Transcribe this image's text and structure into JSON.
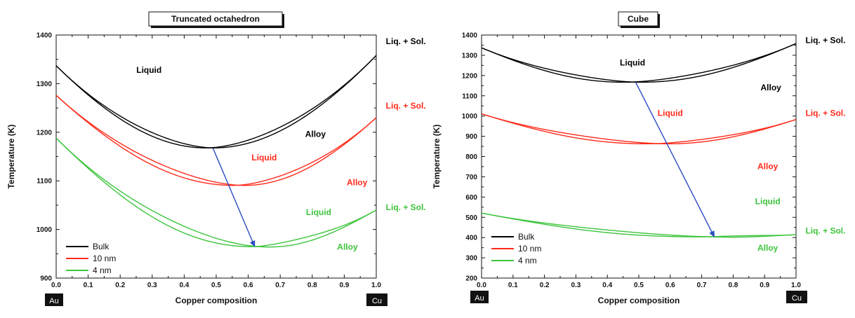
{
  "chart_data": [
    {
      "type": "line",
      "title": "Truncated octahedron",
      "xlabel": "Copper composition",
      "ylabel": "Temperature (K)",
      "xlim": [
        0.0,
        1.0
      ],
      "ylim": [
        900,
        1400
      ],
      "xticks": [
        "0.0",
        "0.1",
        "0.2",
        "0.3",
        "0.4",
        "0.5",
        "0.6",
        "0.7",
        "0.8",
        "0.9",
        "1.0"
      ],
      "yticks": [
        "900",
        "1000",
        "1100",
        "1200",
        "1300",
        "1400"
      ],
      "x_end_labels": {
        "left": "Au",
        "right": "Cu"
      },
      "legend": {
        "position": "bottom-left",
        "entries": [
          "Bulk",
          "10 nm",
          "4 nm"
        ]
      },
      "series": [
        {
          "name": "Bulk",
          "color": "#000000",
          "t_left": 1337,
          "t_right": 1358,
          "min_x": 0.48,
          "min_t": 1168,
          "gap": 10
        },
        {
          "name": "10 nm",
          "color": "#ff2a1a",
          "t_left": 1276,
          "t_right": 1230,
          "min_x": 0.57,
          "min_t": 1091,
          "gap": 12
        },
        {
          "name": "4 nm",
          "color": "#3cc43c",
          "t_left": 1188,
          "t_right": 1040,
          "min_x": 0.63,
          "min_t": 965,
          "gap": 16
        }
      ],
      "arrow": {
        "from": [
          0.49,
          1167
        ],
        "to": [
          0.62,
          965
        ],
        "color": "#2b4bbf"
      },
      "annotations": [
        {
          "text": "Liquid",
          "x": 0.29,
          "y": 1322,
          "color": "#000000"
        },
        {
          "text": "Alloy",
          "x": 0.81,
          "y": 1190,
          "color": "#000000"
        },
        {
          "text": "Liq. + Sol.",
          "x": 1.03,
          "y": 1381,
          "color": "#000000"
        },
        {
          "text": "Liquid",
          "x": 0.65,
          "y": 1142,
          "color": "#ff2a1a"
        },
        {
          "text": "Alloy",
          "x": 0.94,
          "y": 1091,
          "color": "#ff2a1a"
        },
        {
          "text": "Liq. + Sol.",
          "x": 1.03,
          "y": 1249,
          "color": "#ff2a1a"
        },
        {
          "text": "Liquid",
          "x": 0.82,
          "y": 1030,
          "color": "#3cc43c"
        },
        {
          "text": "Alloy",
          "x": 0.91,
          "y": 958,
          "color": "#3cc43c"
        },
        {
          "text": "Liq. + Sol.",
          "x": 1.03,
          "y": 1040,
          "color": "#3cc43c"
        }
      ]
    },
    {
      "type": "line",
      "title": "Cube",
      "xlabel": "Copper composition",
      "ylabel": "Temperature (K)",
      "xlim": [
        0.0,
        1.0
      ],
      "ylim": [
        200,
        1400
      ],
      "xticks": [
        "0.0",
        "0.1",
        "0.2",
        "0.3",
        "0.4",
        "0.5",
        "0.6",
        "0.7",
        "0.8",
        "0.9",
        "1.0"
      ],
      "yticks": [
        "200",
        "300",
        "400",
        "500",
        "600",
        "700",
        "800",
        "900",
        "1000",
        "1100",
        "1200",
        "1300",
        "1400"
      ],
      "x_end_labels": {
        "left": "Au",
        "right": "Cu"
      },
      "legend": {
        "position": "bottom-left",
        "entries": [
          "Bulk",
          "10 nm",
          "4 nm"
        ]
      },
      "series": [
        {
          "name": "Bulk",
          "color": "#000000",
          "t_left": 1337,
          "t_right": 1358,
          "min_x": 0.48,
          "min_t": 1168,
          "gap": 20
        },
        {
          "name": "10 nm",
          "color": "#ff2a1a",
          "t_left": 1011,
          "t_right": 983,
          "min_x": 0.56,
          "min_t": 864,
          "gap": 18
        },
        {
          "name": "4 nm",
          "color": "#3cc43c",
          "t_left": 521,
          "t_right": 414,
          "min_x": 0.73,
          "min_t": 404,
          "gap": 14
        }
      ],
      "arrow": {
        "from": [
          0.49,
          1167
        ],
        "to": [
          0.74,
          404
        ],
        "color": "#2b4bbf"
      },
      "annotations": [
        {
          "text": "Liquid",
          "x": 0.48,
          "y": 1250,
          "color": "#000000"
        },
        {
          "text": "Alloy",
          "x": 0.92,
          "y": 1127,
          "color": "#000000"
        },
        {
          "text": "Liq. + Sol.",
          "x": 1.03,
          "y": 1360,
          "color": "#000000"
        },
        {
          "text": "Liquid",
          "x": 0.6,
          "y": 1000,
          "color": "#ff2a1a"
        },
        {
          "text": "Alloy",
          "x": 0.91,
          "y": 738,
          "color": "#ff2a1a"
        },
        {
          "text": "Liq. + Sol.",
          "x": 1.03,
          "y": 1000,
          "color": "#ff2a1a"
        },
        {
          "text": "Liquid",
          "x": 0.91,
          "y": 565,
          "color": "#3cc43c"
        },
        {
          "text": "Alloy",
          "x": 0.91,
          "y": 335,
          "color": "#3cc43c"
        },
        {
          "text": "Liq. + Sol.",
          "x": 1.03,
          "y": 420,
          "color": "#3cc43c"
        }
      ]
    }
  ]
}
